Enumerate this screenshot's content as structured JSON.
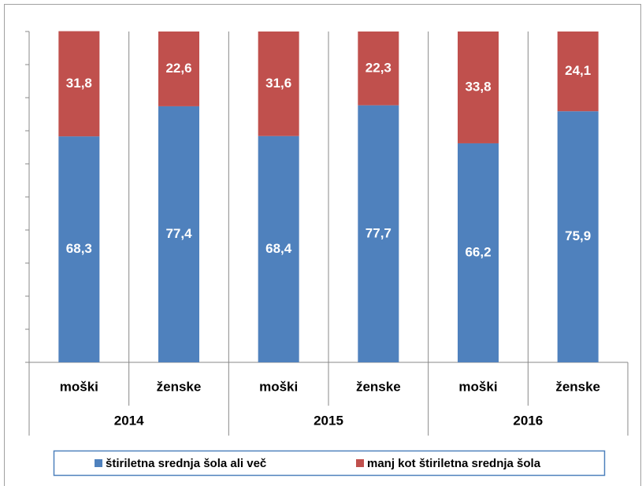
{
  "chart_data": {
    "type": "stacked_bar",
    "categories": [
      "moški",
      "ženske",
      "moški",
      "ženske",
      "moški",
      "ženske"
    ],
    "groups": [
      "2014",
      "2015",
      "2016"
    ],
    "series": [
      {
        "name": "štiriletna srednja šola ali več",
        "color": "#4f81bd",
        "values": [
          68.3,
          77.4,
          68.4,
          77.7,
          66.2,
          75.9
        ],
        "value_labels": [
          "68,3",
          "77,4",
          "68,4",
          "77,7",
          "66,2",
          "75,9"
        ]
      },
      {
        "name": "manj kot štiriletna srednja šola",
        "color": "#c0504d",
        "values": [
          31.8,
          22.6,
          31.6,
          22.3,
          33.8,
          24.1
        ],
        "value_labels": [
          "31,8",
          "22,6",
          "31,6",
          "22,3",
          "33,8",
          "24,1"
        ]
      }
    ],
    "ylim": [
      0,
      100
    ],
    "yticks": [
      0,
      10,
      20,
      30,
      40,
      50,
      60,
      70,
      80,
      90,
      100
    ],
    "legend": "bottom"
  }
}
